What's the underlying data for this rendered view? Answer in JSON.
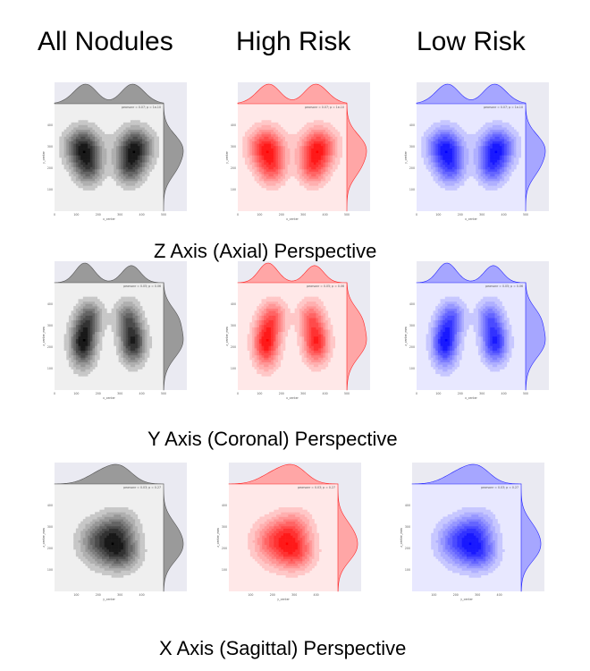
{
  "columns": [
    "All Nodules",
    "High Risk",
    "Low Risk"
  ],
  "rows": [
    {
      "title": "Z Axis (Axial) Perspective",
      "xlabel": "x_center",
      "ylabel": "y_center"
    },
    {
      "title": "Y Axis (Coronal) Perspective",
      "xlabel": "x_center",
      "ylabel": "z_center_mm"
    },
    {
      "title": "X Axis (Sagittal) Perspective",
      "xlabel": "y_center",
      "ylabel": "z_center_mm"
    }
  ],
  "colors": {
    "All Nodules": "#000000",
    "High Risk": "#ff0000",
    "Low Risk": "#0000ff"
  },
  "chart_data": [
    {
      "type": "kde-joint",
      "perspective": "Z Axis (Axial) Perspective",
      "xlim": [
        0,
        500
      ],
      "ylim": [
        0,
        500
      ],
      "xticks": [
        0,
        100,
        200,
        300,
        400,
        500
      ],
      "yticks": [
        100,
        200,
        300,
        400
      ],
      "annotation": "pearsonr = 0.07; p = 1e-10",
      "lobes": [
        {
          "x": 130,
          "y": 300,
          "sx": 55,
          "sy": 60,
          "w": 1.0
        },
        {
          "x": 370,
          "y": 300,
          "sx": 55,
          "sy": 60,
          "w": 1.0
        },
        {
          "x": 155,
          "y": 200,
          "sx": 45,
          "sy": 55,
          "w": 0.7
        },
        {
          "x": 345,
          "y": 200,
          "sx": 45,
          "sy": 55,
          "w": 0.7
        }
      ]
    },
    {
      "type": "kde-joint",
      "perspective": "Y Axis (Coronal) Perspective",
      "xlim": [
        0,
        500
      ],
      "ylim": [
        0,
        500
      ],
      "xticks": [
        0,
        100,
        200,
        300,
        400,
        500
      ],
      "yticks": [
        100,
        200,
        300,
        400
      ],
      "annotation": "pearsonr = 0.05; p = 0.06",
      "lobes": [
        {
          "x": 130,
          "y": 220,
          "sx": 40,
          "sy": 75,
          "w": 1.0
        },
        {
          "x": 360,
          "y": 220,
          "sx": 40,
          "sy": 65,
          "w": 0.9
        },
        {
          "x": 165,
          "y": 340,
          "sx": 40,
          "sy": 55,
          "w": 0.55
        },
        {
          "x": 335,
          "y": 340,
          "sx": 40,
          "sy": 55,
          "w": 0.55
        }
      ]
    },
    {
      "type": "kde-joint",
      "perspective": "X Axis (Sagittal) Perspective",
      "xlim": [
        0,
        500
      ],
      "ylim": [
        0,
        500
      ],
      "xticks": [
        100,
        200,
        300,
        400
      ],
      "yticks": [
        100,
        200,
        300,
        400
      ],
      "annotation": "pearsonr = 0.03; p = 0.27",
      "lobes": [
        {
          "x": 210,
          "y": 240,
          "sx": 65,
          "sy": 65,
          "w": 0.9
        },
        {
          "x": 310,
          "y": 180,
          "sx": 55,
          "sy": 55,
          "w": 1.0
        },
        {
          "x": 300,
          "y": 300,
          "sx": 55,
          "sy": 55,
          "w": 0.8
        },
        {
          "x": 250,
          "y": 210,
          "sx": 80,
          "sy": 75,
          "w": 0.6
        }
      ]
    }
  ]
}
